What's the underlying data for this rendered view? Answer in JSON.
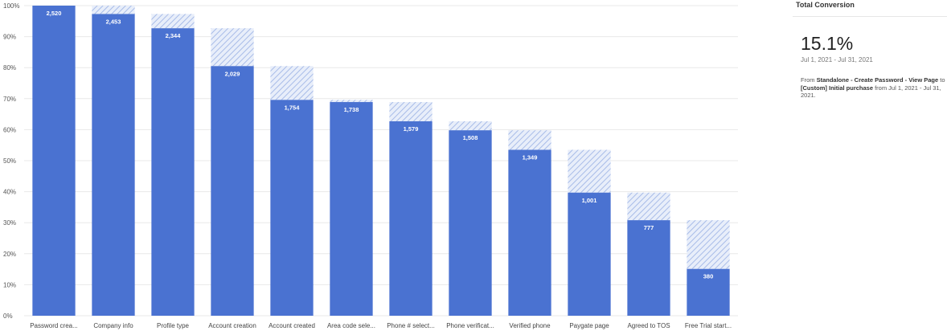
{
  "chart_data": {
    "type": "bar",
    "categories": [
      "Password crea...",
      "Company info",
      "Profile type",
      "Account creation",
      "Account created",
      "Area code sele...",
      "Phone # select...",
      "Phone verificat...",
      "Verified phone",
      "Paygate page",
      "Agreed to TOS",
      "Free Trial start..."
    ],
    "series": [
      {
        "values": [
          100,
          97.3,
          92.7,
          80.5,
          69.6,
          68.9,
          62.7,
          59.8,
          53.5,
          39.7,
          30.8,
          15.1
        ]
      },
      {
        "values": [
          100,
          100,
          97.3,
          92.7,
          80.5,
          69.6,
          68.9,
          62.7,
          59.8,
          53.5,
          39.7,
          30.8
        ]
      }
    ],
    "data_labels": [
      "2,520",
      "2,453",
      "2,344",
      "2,029",
      "1,754",
      "1,738",
      "1,579",
      "1,508",
      "1,349",
      "1,001",
      "777",
      "380"
    ],
    "yticks": [
      "0%",
      "10%",
      "20%",
      "30%",
      "40%",
      "50%",
      "60%",
      "70%",
      "80%",
      "90%",
      "100%"
    ],
    "ylim": [
      0,
      100
    ],
    "grid": true,
    "title": "",
    "xlabel": "",
    "ylabel": ""
  },
  "colors": {
    "bar": "#4a72d1",
    "hatch": "#a8bce8",
    "hatch_bg": "#e8eefa",
    "grid": "#e8e8e8"
  },
  "side_panel": {
    "title": "Total Conversion",
    "value": "15.1%",
    "date_range": "Jul 1, 2021 - Jul 31, 2021",
    "desc_prefix": "From ",
    "desc_from": "Standalone - Create Password - View Page",
    "desc_to_word": " to ",
    "desc_to": "[Custom] Initial purchase",
    "desc_suffix": " from Jul 1, 2021 - Jul 31, 2021."
  }
}
